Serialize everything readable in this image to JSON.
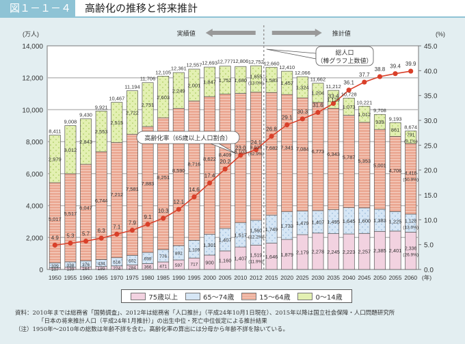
{
  "header": {
    "figure_number": "図１－１－４",
    "title": "高齢化の推移と将来推計"
  },
  "chart_data": {
    "type": "bar",
    "stacked": true,
    "title": "高齢化の推移と将来推計",
    "categories": [
      "1950",
      "1955",
      "1960",
      "1965",
      "1970",
      "1975",
      "1980",
      "1985",
      "1990",
      "1995",
      "2000",
      "2005",
      "2010",
      "2012",
      "2015",
      "2020",
      "2025",
      "2030",
      "2035",
      "2040",
      "2045",
      "2050",
      "2055",
      "2060"
    ],
    "x_unit_label": "(年)",
    "left_axis": {
      "label": "(万人)",
      "range": [
        0,
        14000
      ],
      "ticks": [
        "0",
        "2,000",
        "4,000",
        "6,000",
        "8,000",
        "10,000",
        "12,000",
        "14,000"
      ],
      "tick_values": [
        0,
        2000,
        4000,
        6000,
        8000,
        10000,
        12000,
        14000
      ]
    },
    "right_axis": {
      "label": "(%)",
      "range": [
        0,
        45
      ],
      "ticks": [
        "0.0",
        "5.0",
        "10.0",
        "15.0",
        "20.0",
        "25.0",
        "30.0",
        "35.0",
        "40.0",
        "45.0"
      ],
      "tick_values": [
        0,
        5,
        10,
        15,
        20,
        25,
        30,
        35,
        40,
        45
      ]
    },
    "grid": true,
    "series": [
      {
        "name": "75歳以上",
        "color": "#f2d2e0",
        "values": [
          107,
          139,
          164,
          189,
          224,
          284,
          366,
          471,
          597,
          717,
          900,
          1160,
          1407,
          1519,
          1646,
          1879,
          2179,
          2278,
          2245,
          2223,
          2257,
          2385,
          2401,
          2336
        ],
        "labels": [
          "107",
          "139",
          "164",
          "189",
          "224",
          "284",
          "366",
          "471",
          "597",
          "717",
          "900",
          "1,160",
          "1,407",
          "1,519",
          "1,646",
          "1,879",
          "2,179",
          "2,278",
          "2,245",
          "2,223",
          "2,257",
          "2,385",
          "2,401",
          "2,336"
        ]
      },
      {
        "name": "65～74歳",
        "color": "#d6e6f5",
        "values": [
          309,
          338,
          376,
          434,
          516,
          602,
          699,
          776,
          892,
          1109,
          1301,
          1407,
          1517,
          1560,
          1749,
          1733,
          1479,
          1407,
          1495,
          1645,
          1600,
          1383,
          1225,
          1128
        ],
        "labels": [
          "309",
          "338",
          "376",
          "434",
          "516",
          "602",
          "699",
          "776",
          "892",
          "1,109",
          "1,301",
          "1,407",
          "1,517",
          "1,560",
          "1,749",
          "1,733",
          "1,479",
          "1,407",
          "1,495",
          "1,645",
          "1,600",
          "1,383",
          "1,225",
          "1,128"
        ]
      },
      {
        "name": "15～64歳",
        "color": "#eba893",
        "values": [
          5017,
          5517,
          6047,
          6744,
          7212,
          7581,
          7883,
          8251,
          8590,
          8716,
          8622,
          8409,
          8103,
          8018,
          7682,
          7341,
          7084,
          6773,
          6343,
          5787,
          5353,
          5001,
          4706,
          4418
        ],
        "labels": [
          "5,017",
          "5,517",
          "6,047",
          "6,744",
          "7,212",
          "7,581",
          "7,883",
          "8,251",
          "8,590",
          "8,716",
          "8,622",
          "8,409",
          "8,103",
          "8,018",
          "7,682",
          "7,341",
          "7,084",
          "6,773",
          "6,343",
          "5,787",
          "5,353",
          "5,001",
          "4,706",
          "4,418"
        ]
      },
      {
        "name": "0～14歳",
        "color": "#e3f0b2",
        "values": [
          2979,
          3012,
          2843,
          2553,
          2515,
          2722,
          2751,
          2603,
          2249,
          2001,
          1847,
          1752,
          1680,
          1655,
          1583,
          1457,
          1324,
          1204,
          1129,
          1073,
          1012,
          939,
          861,
          791
        ],
        "labels": [
          "2,979",
          "3,012",
          "2,843",
          "2,553",
          "2,515",
          "2,722",
          "2,751",
          "2,603",
          "2,249",
          "2,001",
          "1,847",
          "1,752",
          "1,680",
          "1,655",
          "1,583",
          "1,457",
          "1,324",
          "1,204",
          "1,129",
          "1,073",
          "1,012",
          "939",
          "861",
          "791"
        ]
      }
    ],
    "share_labels": {
      "2012": {
        "75歳以上": "(11.9%)",
        "65～74歳": "(12.2%)",
        "15～64歳": "(62.9%)",
        "0～14歳": "(13.0%)"
      },
      "2060": {
        "75歳以上": "(26.9%)",
        "65～74歳": "(13.0%)",
        "15～64歳": "(50.9%)",
        "0～14歳": "(9.1%)"
      }
    },
    "totals": [
      8411,
      9008,
      9430,
      9921,
      10467,
      11194,
      11706,
      12105,
      12361,
      12557,
      12693,
      12777,
      12806,
      12752,
      12660,
      12410,
      12066,
      11662,
      11212,
      10728,
      10221,
      9708,
      9193,
      8674
    ],
    "total_labels": [
      "8,411",
      "9,008",
      "9,430",
      "9,921",
      "10,467",
      "11,194",
      "11,706",
      "12,105",
      "12,361",
      "12,557",
      "12,693",
      "12,777",
      "12,806",
      "12,752",
      "12,660",
      "12,410",
      "12,066",
      "11,662",
      "11,212",
      "10,728",
      "10,221",
      "9,708",
      "9,193",
      "8,674"
    ],
    "line": {
      "name": "高齢化率（65歳以上人口割合）",
      "color": "#d9402a",
      "axis": "right",
      "values": [
        4.9,
        5.3,
        5.7,
        6.3,
        7.1,
        7.9,
        9.1,
        10.3,
        12.1,
        14.6,
        17.4,
        20.2,
        23.0,
        24.1,
        26.8,
        29.1,
        30.3,
        31.6,
        33.4,
        36.1,
        37.7,
        38.8,
        39.4,
        39.9
      ],
      "labels": [
        "4.9",
        "5.3",
        "5.7",
        "6.3",
        "7.1",
        "7.9",
        "9.1",
        "10.3",
        "12.1",
        "14.6",
        "17.4",
        "20.2",
        "23.0",
        "24.1",
        "26.8",
        "29.1",
        "30.3",
        "31.6",
        "33.4",
        "36.1",
        "37.7",
        "38.8",
        "39.4",
        "39.9"
      ]
    },
    "annotations": {
      "actual_label": "実績値",
      "projection_label": "推計値",
      "aging_rate_callout": "高齢化率（65歳以上人口割合）",
      "total_callout_line1": "総人口",
      "total_callout_line2": "（棒グラフ上数値）"
    },
    "legend_position": "bottom"
  },
  "legend": [
    {
      "label": "75歳以上",
      "color": "#f2d2e0"
    },
    {
      "label": "65～74歳",
      "color": "#d6e6f5"
    },
    {
      "label": "15～64歳",
      "color": "#eba893"
    },
    {
      "label": "0～14歳",
      "color": "#e3f0b2"
    }
  ],
  "notes": {
    "source_line1": "資料：2010年までは総務省「国勢調査」、2012年は総務省「人口推計」（平成24年10月1日現在）、2015年以降は国立社会保障・人口問題研究所",
    "source_line2": "「日本の将来推計人口（平成24年1月推計）」の出生中位・死亡中位仮定による推計結果",
    "note": "（注）1950年～2010年の総数は年齢不詳を含む。高齢化率の算出には分母から年齢不詳を除いている。"
  }
}
